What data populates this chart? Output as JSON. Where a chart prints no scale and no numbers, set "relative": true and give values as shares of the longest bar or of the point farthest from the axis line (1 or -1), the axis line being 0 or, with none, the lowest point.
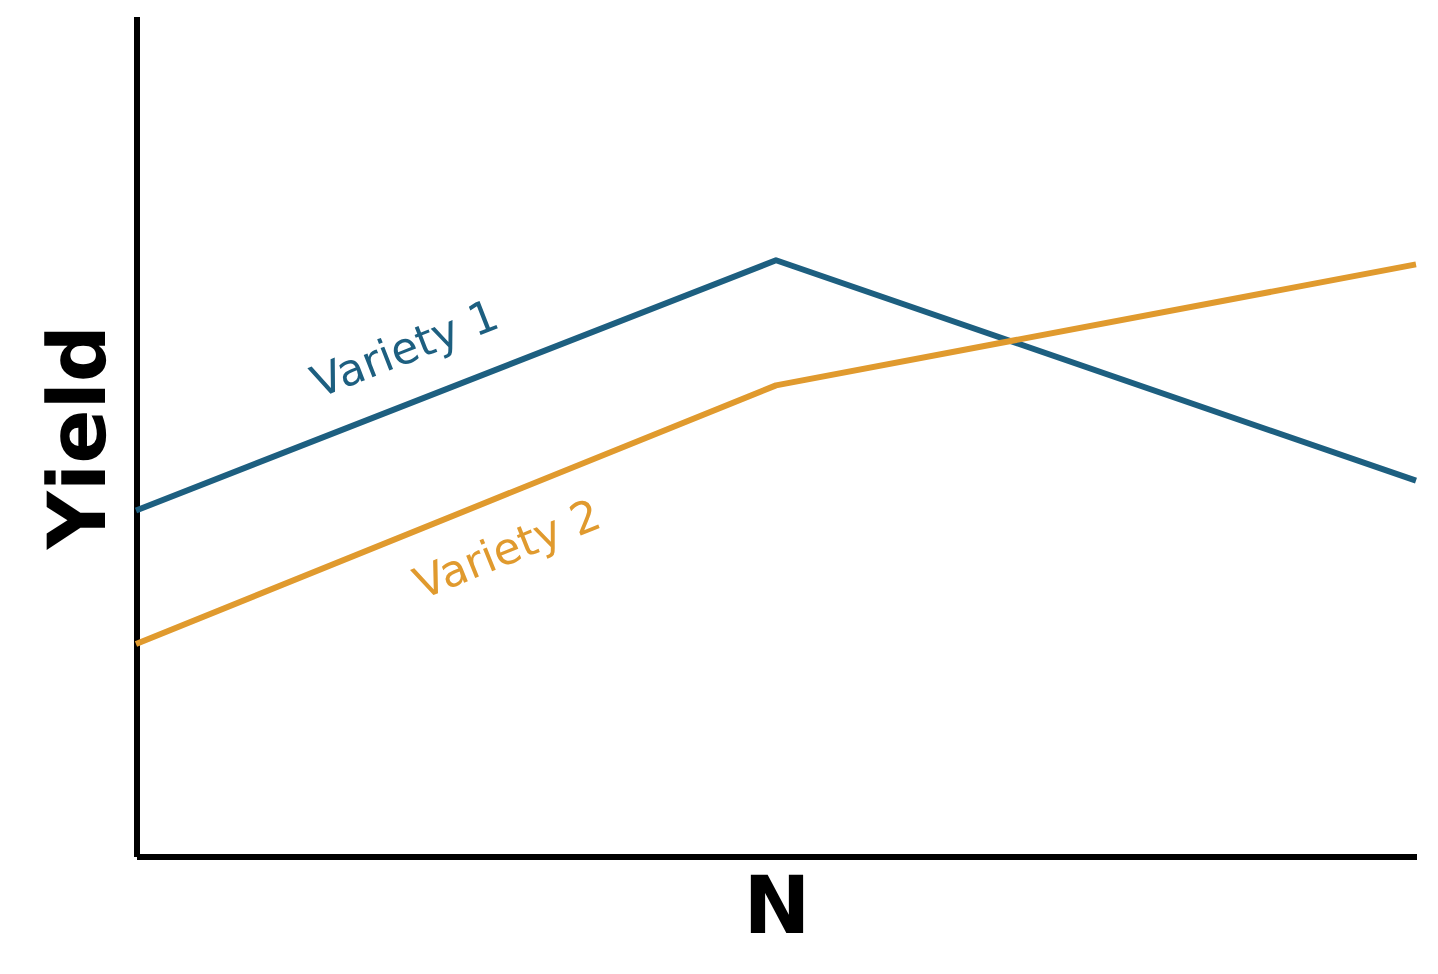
{
  "chart_data": {
    "type": "line",
    "relative": true,
    "xlabel": "N",
    "ylabel": "Yield",
    "categories": [
      null,
      null,
      null
    ],
    "tick_labels": false,
    "grid": false,
    "marker": "none",
    "line_style": "solid",
    "series": [
      {
        "name": "Variety 1",
        "color": "#1d5f80",
        "values": [
          0.58,
          1,
          0.63
        ]
      },
      {
        "name": "Variety 2",
        "color": "#e09a2e",
        "values": [
          0.356,
          0.79,
          0.993
        ]
      }
    ]
  }
}
